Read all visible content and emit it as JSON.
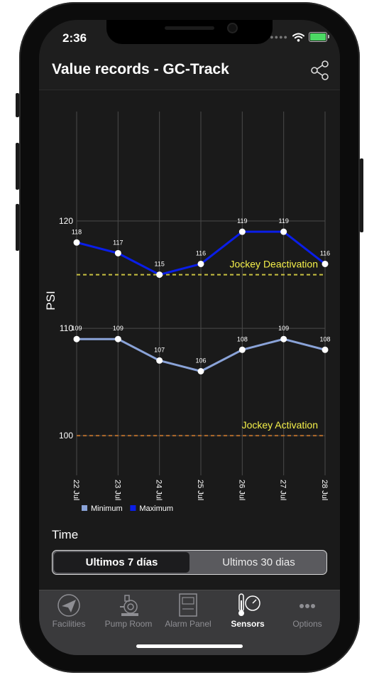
{
  "status_bar": {
    "time": "2:36"
  },
  "header": {
    "title": "Value records - GC-Track"
  },
  "chart_data": {
    "type": "line",
    "ylabel": "PSI",
    "xlabel": "",
    "ylim": [
      96.3,
      130.2
    ],
    "yticks": [
      100,
      110,
      120
    ],
    "categories": [
      "22 Jul",
      "23 Jul",
      "24 Jul",
      "25 Jul",
      "26 Jul",
      "27 Jul",
      "28 Jul"
    ],
    "series": [
      {
        "name": "Minimum",
        "color": "#8aa3d8",
        "values": [
          109,
          109,
          107,
          106,
          108,
          109,
          108
        ]
      },
      {
        "name": "Maximum",
        "color": "#0a1ee8",
        "values": [
          118,
          117,
          115,
          116,
          119,
          119,
          116
        ]
      }
    ],
    "reference_lines": [
      {
        "label": "Jockey Deactivation",
        "value": 115,
        "color": "#c8c040",
        "label_color": "#f5f04a"
      },
      {
        "label": "Jockey Activation",
        "value": 100,
        "color": "#b06a2a",
        "label_color": "#f5f04a"
      }
    ],
    "legend_position": "bottom-left",
    "grid": true
  },
  "time_section": {
    "label": "Time"
  },
  "range_selector": {
    "options": [
      "Ultimos 7 días",
      "Ultimos 30 dias"
    ],
    "selected": "Ultimos 7 días"
  },
  "tabs": [
    {
      "label": "Facilities",
      "icon": "paper-plane-icon",
      "active": false
    },
    {
      "label": "Pump Room",
      "icon": "pump-icon",
      "active": false
    },
    {
      "label": "Alarm Panel",
      "icon": "alarm-panel-icon",
      "active": false
    },
    {
      "label": "Sensors",
      "icon": "thermometer-gauge-icon",
      "active": true
    },
    {
      "label": "Options",
      "icon": "more-icon",
      "active": false
    }
  ]
}
